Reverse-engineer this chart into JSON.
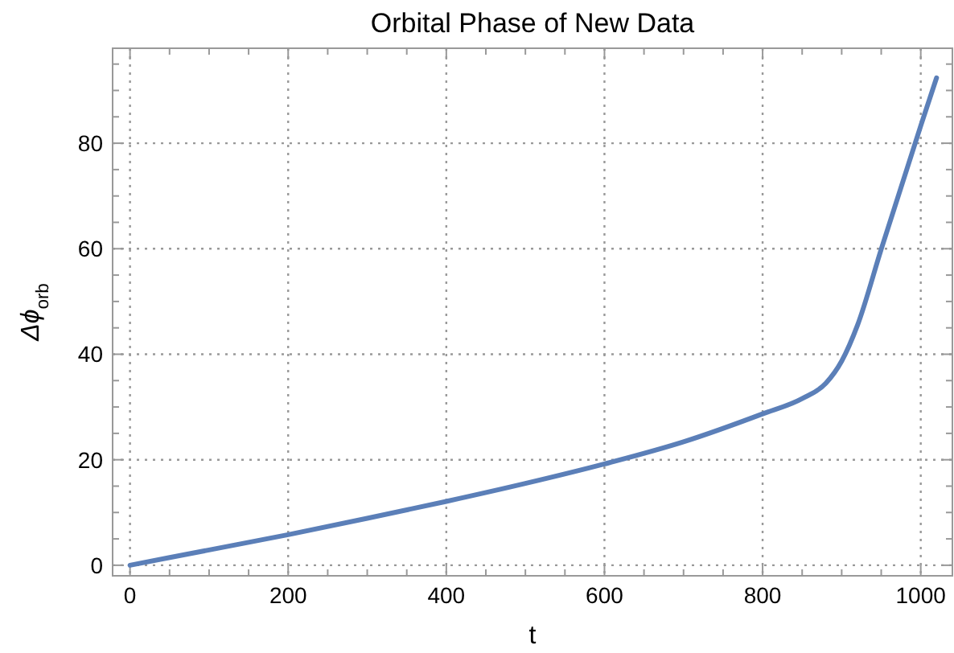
{
  "chart_data": {
    "type": "line",
    "title": "Orbital Phase of New Data",
    "xlabel": "t",
    "ylabel": "Δϕ$_{orb}$",
    "x": [
      0,
      100,
      200,
      300,
      400,
      500,
      600,
      700,
      800,
      850,
      880,
      900,
      920,
      950,
      1000,
      1020
    ],
    "series": [
      {
        "color": "#5b7fb8",
        "values": [
          0,
          2.9,
          5.8,
          8.9,
          12.1,
          15.5,
          19.2,
          23.4,
          28.7,
          31.6,
          34.5,
          38.7,
          45.5,
          59.9,
          83.3,
          92.4
        ]
      }
    ],
    "xlim": [
      -22,
      1040
    ],
    "ylim": [
      -2,
      98
    ],
    "xticks": [
      0,
      {
        "value": 50,
        "label": null
      },
      {
        "value": 100,
        "label": null
      },
      {
        "value": 150,
        "label": null
      },
      200,
      {
        "value": 250,
        "label": null
      },
      {
        "value": 300,
        "label": null
      },
      {
        "value": 350,
        "label": null
      },
      400,
      {
        "value": 450,
        "label": null
      },
      {
        "value": 500,
        "label": null
      },
      {
        "value": 550,
        "label": null
      },
      600,
      {
        "value": 650,
        "label": null
      },
      {
        "value": 700,
        "label": null
      },
      {
        "value": 750,
        "label": null
      },
      800,
      {
        "value": 850,
        "label": null
      },
      {
        "value": 900,
        "label": null
      },
      {
        "value": 950,
        "label": null
      },
      1000
    ],
    "yticks": [
      0,
      {
        "value": 5,
        "label": null
      },
      {
        "value": 10,
        "label": null
      },
      {
        "value": 15,
        "label": null
      },
      20,
      {
        "value": 25,
        "label": null
      },
      {
        "value": 30,
        "label": null
      },
      {
        "value": 35,
        "label": null
      },
      40,
      {
        "value": 45,
        "label": null
      },
      {
        "value": 50,
        "label": null
      },
      {
        "value": 55,
        "label": null
      },
      60,
      {
        "value": 65,
        "label": null
      },
      {
        "value": 70,
        "label": null
      },
      {
        "value": 75,
        "label": null
      },
      80,
      {
        "value": 85,
        "label": null
      },
      {
        "value": 90,
        "label": null
      },
      {
        "value": 95,
        "label": null
      }
    ],
    "grid": true,
    "line_style": "solid"
  }
}
